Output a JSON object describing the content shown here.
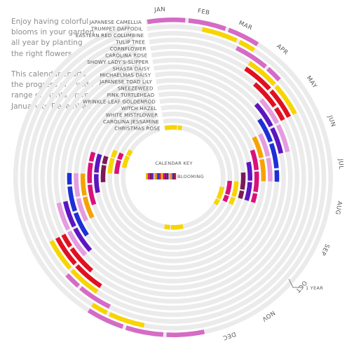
{
  "intro": {
    "paragraph1": "Enjoy having colorful blooms in your garden all year by planting the right flowers.",
    "paragraph2": "This calendar charts the progress of a wide range of plants, from January to December."
  },
  "chart_data": {
    "type": "radial-bloom-calendar",
    "months": [
      "JAN",
      "FEB",
      "MAR",
      "APR",
      "MAY",
      "JUN",
      "JUL",
      "AUG",
      "SEP",
      "OCT",
      "NOV",
      "DEC",
      "JAN",
      "FEB",
      "MAR",
      "APR",
      "MAY",
      "JUN",
      "JUL",
      "AUG",
      "SEP",
      "OCT",
      "NOV",
      "DEC"
    ],
    "key": {
      "title": "CALENDAR KEY",
      "label": "BLOOMING",
      "swatch_colors": [
        "#e0c200",
        "#d9127b",
        "#7a1a55",
        "#5b16c0",
        "#d6b89a",
        "#e58a00",
        "#1e2fd6",
        "#e01020"
      ]
    },
    "one_year_label": "1 YEAR",
    "colors": {
      "ring_background": "#ebebeb",
      "pink": "#d56bc6",
      "light_pink": "#e59ce0",
      "yellow": "#f6d500",
      "orange": "#f5a300",
      "red": "#e01020",
      "magenta": "#d9127b",
      "purple": "#5b16c0",
      "plum": "#7a1a55",
      "blue": "#1e2fd6",
      "tan": "#d6b89a"
    },
    "plants": [
      {
        "name": "JAPANESE CAMELLIA",
        "color": "#d56bc6",
        "bloom": [
          [
            1.0,
            4.0
          ]
        ]
      },
      {
        "name": "TRUMPET DAFFODIL",
        "color": "#f6d500",
        "bloom": [
          [
            2.5,
            4.0
          ]
        ]
      },
      {
        "name": "EASTERN RED COLUMBINE",
        "color": "#d56bc6",
        "bloom": [
          [
            3.5,
            5.0
          ]
        ]
      },
      {
        "name": "TULIP TREE",
        "color": "#f6d500",
        "bloom": [
          [
            4.0,
            6.0
          ]
        ]
      },
      {
        "name": "CORNFLOWER",
        "color": "#e01020",
        "bloom": [
          [
            4.0,
            6.0
          ]
        ]
      },
      {
        "name": "CAROLINA ROSE",
        "color": "#e01020",
        "bloom": [
          [
            4.5,
            6.0
          ]
        ]
      },
      {
        "name": "SHOWY LADY'S-SLIPPER",
        "color": "#e59ce0",
        "bloom": [
          [
            5.0,
            7.0
          ]
        ]
      },
      {
        "name": "SHASTA DAISY",
        "color": "#5b16c0",
        "bloom": [
          [
            5.0,
            7.0
          ]
        ]
      },
      {
        "name": "MICHAELMAS DAISY",
        "color": "#1e2fd6",
        "bloom": [
          [
            5.5,
            8.0
          ]
        ]
      },
      {
        "name": "JAPANESE TOAD LILY",
        "color": "#e59ce0",
        "bloom": [
          [
            6.0,
            8.0
          ]
        ]
      },
      {
        "name": "SNEEZEWEED",
        "color": "#f5a300",
        "bloom": [
          [
            6.0,
            8.0
          ]
        ]
      },
      {
        "name": "PINK TURTLEHEAD",
        "color": "#d9127b",
        "bloom": [
          [
            6.5,
            9.0
          ]
        ]
      },
      {
        "name": "WRINKLE-LEAF GOLDENROD",
        "color": "#5b16c0",
        "bloom": [
          [
            7.0,
            9.0
          ]
        ]
      },
      {
        "name": "WITCH HAZEL",
        "color": "#7a1a55",
        "bloom": [
          [
            7.5,
            9.0
          ]
        ]
      },
      {
        "name": "WHITE MISTFLOWER",
        "color": "#f6d500",
        "bloom": [
          [
            8.0,
            9.5
          ]
        ]
      },
      {
        "name": "CAROLINA JESSAMINE",
        "color": "#d9127b",
        "bloom": [
          [
            8.0,
            9.5
          ]
        ]
      },
      {
        "name": "CHRISTMAS ROSE",
        "color": "#f6d500",
        "bloom": [
          [
            1.0,
            2.5
          ],
          [
            8.5,
            10.0
          ]
        ]
      }
    ]
  }
}
